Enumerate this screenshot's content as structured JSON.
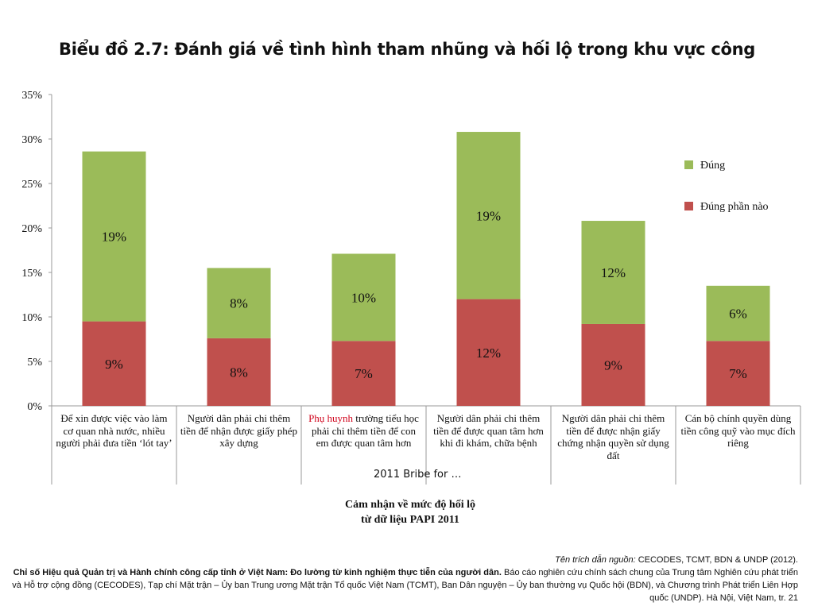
{
  "title": "Biểu đồ 2.7: Đánh giá về tình hình tham nhũng và hối lộ trong khu vực công",
  "chart_data": {
    "type": "bar",
    "stacked": true,
    "categories": [
      "Để xin được việc vào làm cơ quan nhà nước, nhiều người phải đưa tiền ‘lót tay’",
      "Người dân phải chi thêm tiền để nhận được giấy phép xây dựng",
      "Phụ huynh trường tiểu học phải chi thêm tiền để con em được quan tâm hơn",
      "Người dân phải chi thêm tiền để được quan tâm hơn khi đi khám, chữa bệnh",
      "Người dân phải chi thêm tiền để được nhận giấy chứng nhận quyền sử dụng đất",
      "Cán bộ chính quyền dùng tiền công quỹ vào mục đích riêng"
    ],
    "category_highlight": {
      "index": 2,
      "text": "Phụ huynh"
    },
    "series": [
      {
        "name": "Đúng phần nào",
        "values": [
          9.5,
          7.6,
          7.3,
          12.0,
          9.2,
          7.3
        ],
        "labels": [
          "9%",
          "8%",
          "7%",
          "12%",
          "9%",
          "7%"
        ],
        "color": "#c0504d"
      },
      {
        "name": "Đúng",
        "values": [
          19.1,
          7.9,
          9.8,
          18.8,
          11.6,
          6.2
        ],
        "labels": [
          "19%",
          "8%",
          "10%",
          "19%",
          "12%",
          "6%"
        ],
        "color": "#9bbb59"
      }
    ],
    "ylim": [
      0,
      35
    ],
    "yticks": [
      "0%",
      "5%",
      "10%",
      "15%",
      "20%",
      "25%",
      "30%",
      "35%"
    ],
    "series_axis_label": "2011 Bribe for …",
    "legend_position": "right",
    "grid": false
  },
  "subtitle_lines": [
    "Cảm nhận về mức độ hối lộ",
    "từ dữ liệu PAPI 2011"
  ],
  "source": {
    "label": "Tên trích dẫn nguồn:",
    "citation": "CECODES, TCMT, BDN & UNDP (2012).",
    "bold": "Chỉ số Hiệu quả Quản trị và Hành chính công cấp tỉnh ở Việt Nam: Đo lường từ kinh nghiệm thực tiễn của người dân.",
    "rest": "Báo cáo nghiên cứu chính sách chung của Trung tâm Nghiên cứu phát triển và Hỗ trợ cộng đồng (CECODES), Tạp chí Mặt trận – Ủy ban Trung ương Mặt trận Tổ quốc Việt Nam (TCMT), Ban Dân nguyện – Ủy ban thường vụ Quốc hội (BDN), và Chương trình Phát triển Liên Hợp quốc (UNDP). Hà Nội, Việt Nam, tr. 21"
  }
}
